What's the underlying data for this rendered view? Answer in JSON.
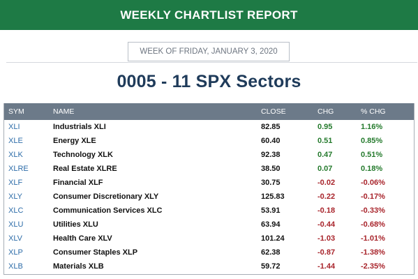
{
  "banner": {
    "title": "WEEKLY CHARTLIST REPORT"
  },
  "date_label": "WEEK OF FRIDAY, JANUARY 3, 2020",
  "report_title": "0005 - 11 SPX Sectors",
  "colors": {
    "banner": "#1e7a45",
    "header": "#6c7a89",
    "positive": "#247a2c",
    "negative": "#a8242b",
    "symbol": "#2d6ca8"
  },
  "table": {
    "headers": {
      "sym": "SYM",
      "name": "NAME",
      "close": "CLOSE",
      "chg": "CHG",
      "pct": "% CHG"
    },
    "rows": [
      {
        "sym": "XLI",
        "name": "Industrials XLI",
        "close": "82.85",
        "chg": "0.95",
        "pct": "1.16%",
        "dir": "pos"
      },
      {
        "sym": "XLE",
        "name": "Energy XLE",
        "close": "60.40",
        "chg": "0.51",
        "pct": "0.85%",
        "dir": "pos"
      },
      {
        "sym": "XLK",
        "name": "Technology XLK",
        "close": "92.38",
        "chg": "0.47",
        "pct": "0.51%",
        "dir": "pos"
      },
      {
        "sym": "XLRE",
        "name": "Real Estate XLRE",
        "close": "38.50",
        "chg": "0.07",
        "pct": "0.18%",
        "dir": "pos"
      },
      {
        "sym": "XLF",
        "name": "Financial XLF",
        "close": "30.75",
        "chg": "-0.02",
        "pct": "-0.06%",
        "dir": "neg"
      },
      {
        "sym": "XLY",
        "name": "Consumer Discretionary XLY",
        "close": "125.83",
        "chg": "-0.22",
        "pct": "-0.17%",
        "dir": "neg"
      },
      {
        "sym": "XLC",
        "name": "Communication Services XLC",
        "close": "53.91",
        "chg": "-0.18",
        "pct": "-0.33%",
        "dir": "neg"
      },
      {
        "sym": "XLU",
        "name": "Utilities XLU",
        "close": "63.94",
        "chg": "-0.44",
        "pct": "-0.68%",
        "dir": "neg"
      },
      {
        "sym": "XLV",
        "name": "Health Care XLV",
        "close": "101.24",
        "chg": "-1.03",
        "pct": "-1.01%",
        "dir": "neg"
      },
      {
        "sym": "XLP",
        "name": "Consumer Staples XLP",
        "close": "62.38",
        "chg": "-0.87",
        "pct": "-1.38%",
        "dir": "neg"
      },
      {
        "sym": "XLB",
        "name": "Materials XLB",
        "close": "59.72",
        "chg": "-1.44",
        "pct": "-2.35%",
        "dir": "neg"
      }
    ]
  }
}
